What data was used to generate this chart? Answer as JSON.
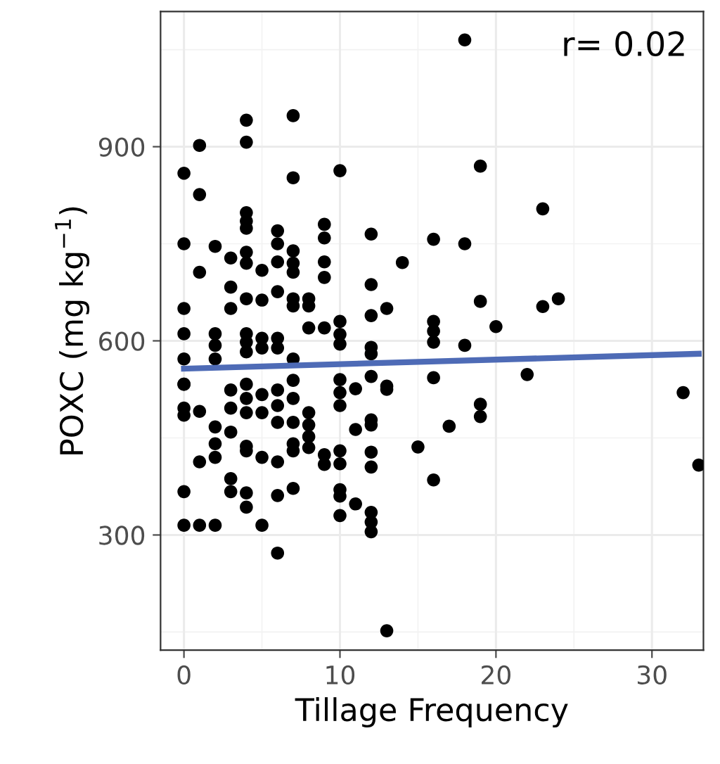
{
  "chart_data": {
    "type": "scatter",
    "xlabel": "Tillage Frequency",
    "ylabel": "POXC (mg kg$^{−1}$)",
    "annotations": [
      "r= 0.02"
    ],
    "xlim": [
      -1.5,
      33.3
    ],
    "ylim": [
      122,
      1109
    ],
    "xticks": [
      0,
      10,
      20,
      30
    ],
    "yticks": [
      300,
      600,
      900
    ],
    "grid": true,
    "series": [
      {
        "color": "#000000",
        "marker": "circle",
        "x": [
          18,
          19,
          23,
          12,
          16,
          18,
          14,
          12,
          19,
          23,
          24,
          12,
          13,
          16,
          16,
          20,
          16,
          18,
          12,
          12,
          22,
          16,
          12,
          13,
          13,
          11,
          32,
          19,
          19,
          12,
          12,
          11,
          17,
          15,
          12,
          12,
          16,
          33,
          11,
          12,
          12,
          12,
          13,
          10,
          10,
          10,
          10,
          10,
          10,
          10,
          10,
          10,
          10,
          10,
          0,
          0,
          0,
          0,
          0,
          1,
          1,
          1,
          2,
          2,
          2,
          2,
          3,
          3,
          3,
          4,
          4,
          4,
          4,
          4,
          4,
          4,
          4,
          4,
          4,
          4,
          5,
          5,
          5,
          5,
          6,
          6,
          6,
          6,
          6,
          6,
          7,
          7,
          7,
          7,
          7,
          7,
          7,
          7,
          8,
          8,
          8,
          9,
          9,
          9,
          9,
          9,
          0,
          0,
          0,
          0,
          0,
          0,
          1,
          1,
          2,
          2,
          2,
          1,
          2,
          3,
          3,
          3,
          3,
          3,
          4,
          4,
          4,
          4,
          4,
          4,
          4,
          5,
          5,
          5,
          5,
          6,
          6,
          6,
          6,
          6,
          6,
          7,
          7,
          7,
          7,
          7,
          7,
          8,
          8,
          8,
          8,
          9,
          9,
          10
        ],
        "values": [
          1065,
          870,
          804,
          765,
          757,
          750,
          721,
          687,
          661,
          653,
          665,
          639,
          650,
          630,
          615,
          622,
          598,
          593,
          590,
          580,
          548,
          543,
          545,
          530,
          525,
          526,
          520,
          502,
          483,
          478,
          470,
          463,
          468,
          436,
          428,
          405,
          385,
          408,
          348,
          335,
          320,
          305,
          152,
          863,
          630,
          610,
          595,
          540,
          520,
          500,
          430,
          410,
          360,
          330,
          859,
          750,
          650,
          611,
          572,
          902,
          826,
          706,
          746,
          611,
          593,
          572,
          728,
          683,
          650,
          941,
          907,
          798,
          785,
          774,
          737,
          720,
          665,
          611,
          598,
          583,
          709,
          663,
          604,
          589,
          770,
          750,
          722,
          676,
          604,
          589,
          948,
          852,
          739,
          720,
          706,
          665,
          654,
          572,
          665,
          654,
          620,
          780,
          759,
          722,
          698,
          620,
          533,
          496,
          485,
          367,
          315,
          533,
          491,
          413,
          467,
          441,
          420,
          315,
          315,
          524,
          496,
          459,
          387,
          367,
          533,
          511,
          489,
          437,
          430,
          365,
          343,
          517,
          489,
          420,
          315,
          524,
          500,
          474,
          413,
          361,
          272,
          539,
          511,
          474,
          441,
          430,
          372,
          489,
          470,
          452,
          435,
          424,
          409,
          370
        ]
      },
      {
        "type": "line",
        "marker": "none",
        "color": "#4e6bb6",
        "x": [
          0,
          33
        ],
        "values": [
          557,
          580
        ]
      }
    ]
  }
}
